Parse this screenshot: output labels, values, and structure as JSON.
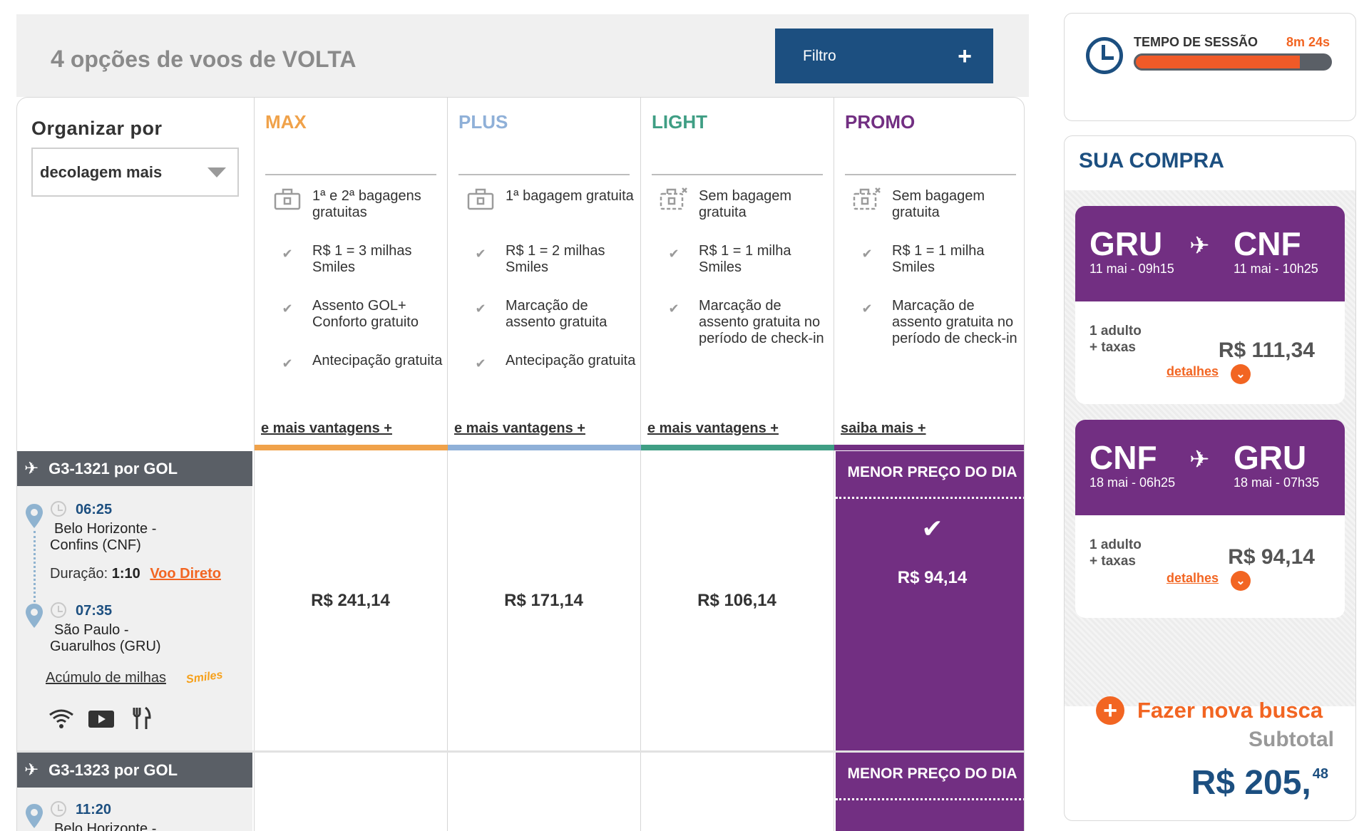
{
  "header": {
    "count": "4",
    "title_rest": "opções de voos de VOLTA",
    "filter_label": "Filtro",
    "filter_icon": "+"
  },
  "sort": {
    "title": "Organizar por",
    "selected": "decolagem mais"
  },
  "fares": [
    {
      "name": "MAX",
      "color": "#f0a24a",
      "features": [
        {
          "icon": "baggage-icon",
          "text": "1ª e 2ª bagagens gratuitas"
        },
        {
          "icon": "check-icon",
          "text": "R$ 1 = 3 milhas Smiles"
        },
        {
          "icon": "check-icon",
          "text": "Assento GOL+ Conforto gratuito"
        },
        {
          "icon": "check-icon",
          "text": "Antecipação gratuita"
        }
      ],
      "link": "e mais vantagens +"
    },
    {
      "name": "PLUS",
      "color": "#8fb0d8",
      "features": [
        {
          "icon": "baggage-icon",
          "text": "1ª bagagem gratuita"
        },
        {
          "icon": "check-icon",
          "text": "R$ 1 = 2 milhas Smiles"
        },
        {
          "icon": "check-icon",
          "text": "Marcação de assento gratuita"
        },
        {
          "icon": "check-icon",
          "text": "Antecipação gratuita"
        }
      ],
      "link": "e mais vantagens +"
    },
    {
      "name": "LIGHT",
      "color": "#3f9e84",
      "features": [
        {
          "icon": "no-baggage-icon",
          "text": "Sem bagagem gratuita"
        },
        {
          "icon": "check-icon",
          "text": "R$ 1 = 1 milha Smiles"
        },
        {
          "icon": "check-icon",
          "text": "Marcação de assento gratuita no período de check-in"
        }
      ],
      "link": "e mais vantagens +"
    },
    {
      "name": "PROMO",
      "color": "#722f82",
      "features": [
        {
          "icon": "no-baggage-icon",
          "text": "Sem bagagem gratuita"
        },
        {
          "icon": "check-icon",
          "text": "R$ 1 = 1 milha Smiles"
        },
        {
          "icon": "check-icon",
          "text": "Marcação de assento gratuita no período de check-in"
        }
      ],
      "link": "saiba mais +"
    }
  ],
  "flights": [
    {
      "number": "G3-1321 por  GOL",
      "dep_time": "06:25",
      "dep_airport_l1": "Belo Horizonte -",
      "dep_airport_l2": "Confins (CNF)",
      "duration_label": "Duração:",
      "duration": "1:10",
      "direct": "Voo Direto",
      "arr_time": "07:35",
      "arr_airport_l1": "São Paulo -",
      "arr_airport_l2": "Guarulhos (GRU)",
      "miles_link": "Acúmulo de milhas",
      "smiles_logo": "Smiles",
      "amenities": [
        "wifi-icon",
        "entertainment-icon",
        "meal-icon"
      ],
      "prices": [
        "R$ 241,14",
        "R$ 171,14",
        "R$ 106,14",
        "R$ 94,14"
      ],
      "best_label": "MENOR  PREÇO DO DIA",
      "best_selected": true
    },
    {
      "number": "G3-1323 por  GOL",
      "dep_time": "11:20",
      "dep_airport_l1": "Belo Horizonte -",
      "best_label": "MENOR  PREÇO DO DIA"
    }
  ],
  "session": {
    "label": "TEMPO DE SESSÃO",
    "time": "8m 24s",
    "progress": 0.85,
    "fill_color": "#f05a28"
  },
  "cart": {
    "title": "SUA COMPRA",
    "legs": [
      {
        "from": "GRU",
        "to": "CNF",
        "from_date": "11 mai - 09h15",
        "to_date": "11 mai - 10h25",
        "pax": "1 adulto",
        "taxes": "+ taxas",
        "price": "R$ 111,34",
        "details": "detalhes"
      },
      {
        "from": "CNF",
        "to": "GRU",
        "from_date": "18 mai - 06h25",
        "to_date": "18 mai - 07h35",
        "pax": "1 adulto",
        "taxes": "+ taxas",
        "price": "R$ 94,14",
        "details": "detalhes"
      }
    ],
    "new_search": "Fazer nova busca",
    "subtotal_label": "Subtotal",
    "subtotal_main": "R$ 205,",
    "subtotal_cents": "48"
  }
}
